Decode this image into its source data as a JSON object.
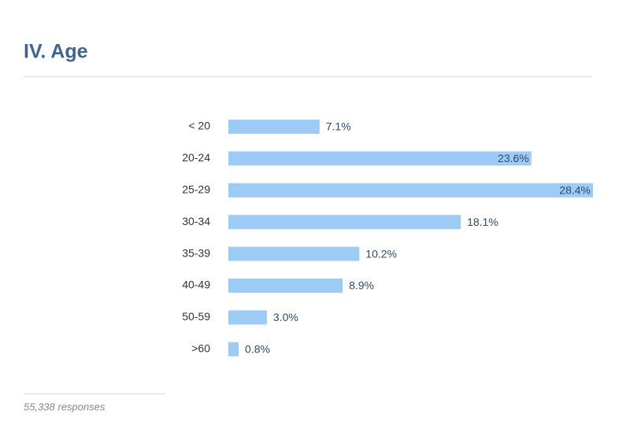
{
  "chart_data": {
    "type": "bar",
    "orientation": "horizontal",
    "title": "IV. Age",
    "categories": [
      "< 20",
      "20-24",
      "25-29",
      "30-34",
      "35-39",
      "40-49",
      "50-59",
      ">60"
    ],
    "values": [
      7.1,
      23.6,
      28.4,
      18.1,
      10.2,
      8.9,
      3.0,
      0.8
    ],
    "value_labels": [
      "7.1%",
      "23.6%",
      "28.4%",
      "18.1%",
      "10.2%",
      "8.9%",
      "3.0%",
      "0.8%"
    ],
    "color": "#9ccbf6",
    "footnote": "55,338 responses"
  }
}
